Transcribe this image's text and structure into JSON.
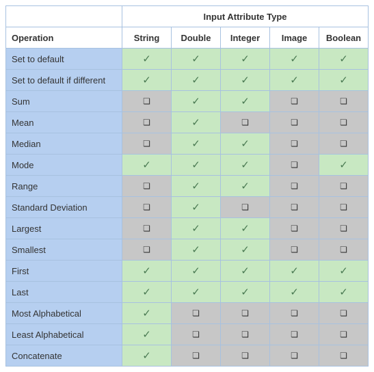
{
  "table": {
    "spanning_header": "Input Attribute Type",
    "operation_header": "Operation",
    "columns": [
      "String",
      "Double",
      "Integer",
      "Image",
      "Boolean"
    ],
    "col_widths": {
      "operation": 170,
      "attr": 72
    },
    "colors": {
      "border": "#a7c1e0",
      "header_bg": "#ffffff",
      "op_bg": "#b6cff0",
      "yes_bg": "#c8e8c2",
      "no_bg": "#c7c7c7",
      "text": "#333333",
      "check": "#4a7a52"
    },
    "glyphs": {
      "yes": "✓",
      "no": "❏"
    },
    "font": {
      "family": "Arial",
      "base_size": 13,
      "check_size": 15,
      "box_size": 12
    },
    "rows": [
      {
        "op": "Set to default",
        "v": [
          1,
          1,
          1,
          1,
          1
        ]
      },
      {
        "op": "Set to default if different",
        "v": [
          1,
          1,
          1,
          1,
          1
        ]
      },
      {
        "op": "Sum",
        "v": [
          0,
          1,
          1,
          0,
          0
        ]
      },
      {
        "op": "Mean",
        "v": [
          0,
          1,
          0,
          0,
          0
        ]
      },
      {
        "op": "Median",
        "v": [
          0,
          1,
          1,
          0,
          0
        ]
      },
      {
        "op": "Mode",
        "v": [
          1,
          1,
          1,
          0,
          1
        ]
      },
      {
        "op": "Range",
        "v": [
          0,
          1,
          1,
          0,
          0
        ]
      },
      {
        "op": "Standard Deviation",
        "v": [
          0,
          1,
          0,
          0,
          0
        ]
      },
      {
        "op": "Largest",
        "v": [
          0,
          1,
          1,
          0,
          0
        ]
      },
      {
        "op": "Smallest",
        "v": [
          0,
          1,
          1,
          0,
          0
        ]
      },
      {
        "op": "First",
        "v": [
          1,
          1,
          1,
          1,
          1
        ]
      },
      {
        "op": "Last",
        "v": [
          1,
          1,
          1,
          1,
          1
        ]
      },
      {
        "op": "Most Alphabetical",
        "v": [
          1,
          0,
          0,
          0,
          0
        ]
      },
      {
        "op": "Least Alphabetical",
        "v": [
          1,
          0,
          0,
          0,
          0
        ]
      },
      {
        "op": "Concatenate",
        "v": [
          1,
          0,
          0,
          0,
          0
        ]
      }
    ]
  }
}
